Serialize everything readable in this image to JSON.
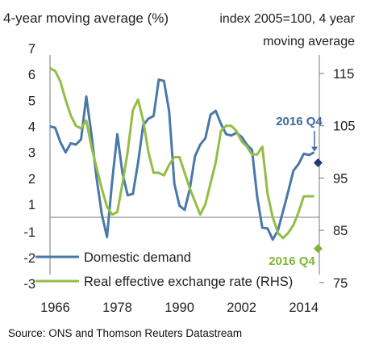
{
  "chart_data": {
    "type": "line",
    "left_axis_title": "4-year moving average (%)",
    "right_axis_title_line1": "index 2005=100, 4 year",
    "right_axis_title_line2": "moving average",
    "x_tick_labels": [
      "1966",
      "1978",
      "1990",
      "2002",
      "2014"
    ],
    "x_ticks": [
      1966,
      1978,
      1990,
      2002,
      2014
    ],
    "x_range": [
      1965,
      2017
    ],
    "left_ticks": [
      {
        "value": 7,
        "label": "7"
      },
      {
        "value": 6,
        "label": "6"
      },
      {
        "value": 5,
        "label": "5"
      },
      {
        "value": 4,
        "label": "4"
      },
      {
        "value": 3,
        "label": "3"
      },
      {
        "value": 2,
        "label": "2"
      },
      {
        "value": 1,
        "label": "1"
      },
      {
        "value": -1,
        "label": "-1"
      },
      {
        "value": -2,
        "label": "-2"
      },
      {
        "value": -3,
        "label": "-3"
      }
    ],
    "right_ticks": [
      {
        "value": 115,
        "label": "115"
      },
      {
        "value": 105,
        "label": "105"
      },
      {
        "value": 95,
        "label": "95"
      },
      {
        "value": 85,
        "label": "85"
      },
      {
        "value": 75,
        "label": "75"
      }
    ],
    "series": [
      {
        "name": "Domestic demand",
        "axis": "left",
        "color": "#4a78a8",
        "x": [
          1965,
          1966,
          1967,
          1968,
          1969,
          1970,
          1971,
          1972,
          1973,
          1974,
          1975,
          1976,
          1977,
          1978,
          1979,
          1980,
          1981,
          1982,
          1983,
          1984,
          1985,
          1986,
          1987,
          1988,
          1989,
          1990,
          1991,
          1992,
          1993,
          1994,
          1995,
          1996,
          1997,
          1998,
          1999,
          2000,
          2001,
          2002,
          2003,
          2004,
          2005,
          2006,
          2007,
          2008,
          2009,
          2010,
          2011,
          2012,
          2013,
          2014,
          2015,
          2016
        ],
        "values": [
          4.0,
          3.95,
          3.4,
          3.0,
          3.35,
          3.3,
          3.5,
          5.15,
          3.7,
          2.0,
          0.3,
          -1.2,
          1.9,
          3.7,
          2.2,
          1.35,
          1.4,
          2.6,
          4.05,
          4.3,
          4.4,
          5.8,
          5.75,
          4.6,
          1.8,
          0.9,
          0.6,
          1.6,
          2.85,
          3.3,
          3.55,
          4.45,
          4.6,
          4.1,
          3.7,
          3.65,
          3.75,
          3.6,
          3.3,
          3.1,
          1.3,
          -0.7,
          -0.75,
          -1.3,
          -0.9,
          0.5,
          1.5,
          2.3,
          2.55,
          2.95,
          2.9,
          3.0
        ]
      },
      {
        "name": "Real effective exchange rate (RHS)",
        "axis": "right",
        "color": "#93bd44",
        "x": [
          1965,
          1966,
          1967,
          1968,
          1969,
          1970,
          1971,
          1972,
          1973,
          1974,
          1975,
          1976,
          1977,
          1978,
          1979,
          1980,
          1981,
          1982,
          1983,
          1984,
          1985,
          1986,
          1987,
          1988,
          1989,
          1990,
          1991,
          1992,
          1993,
          1994,
          1995,
          1996,
          1997,
          1998,
          1999,
          2000,
          2001,
          2002,
          2003,
          2004,
          2005,
          2006,
          2007,
          2008,
          2009,
          2010,
          2011,
          2012,
          2013,
          2014,
          2015,
          2016
        ],
        "values": [
          116,
          115.5,
          113.5,
          110,
          107,
          105,
          104.5,
          106,
          101,
          97,
          93,
          89.5,
          88,
          88.5,
          94,
          100,
          108,
          110,
          106,
          100,
          96,
          96,
          95.5,
          97.5,
          99,
          99,
          96,
          93,
          90.5,
          88,
          90,
          94,
          98,
          104,
          105,
          105,
          104,
          102,
          101,
          99.5,
          99.5,
          101,
          92,
          87.5,
          84.5,
          83.5,
          84.5,
          86,
          88.5,
          91.5,
          91.5,
          91.5
        ]
      }
    ],
    "markers": [
      {
        "label": "2016 Q4",
        "series": "Domestic demand",
        "axis": "left",
        "x": 2016.75,
        "value": 2.6,
        "color": "#1f3d6b",
        "label_color": "#3d6aa0"
      },
      {
        "label": "2016 Q4",
        "series": "Real effective exchange rate (RHS)",
        "axis": "right",
        "x": 2016.75,
        "value": 81.5,
        "color": "#7db53a",
        "label_color": "#7db53a"
      }
    ],
    "grid": false
  },
  "source_text": "Source: ONS and Thomson Reuters Datastream"
}
